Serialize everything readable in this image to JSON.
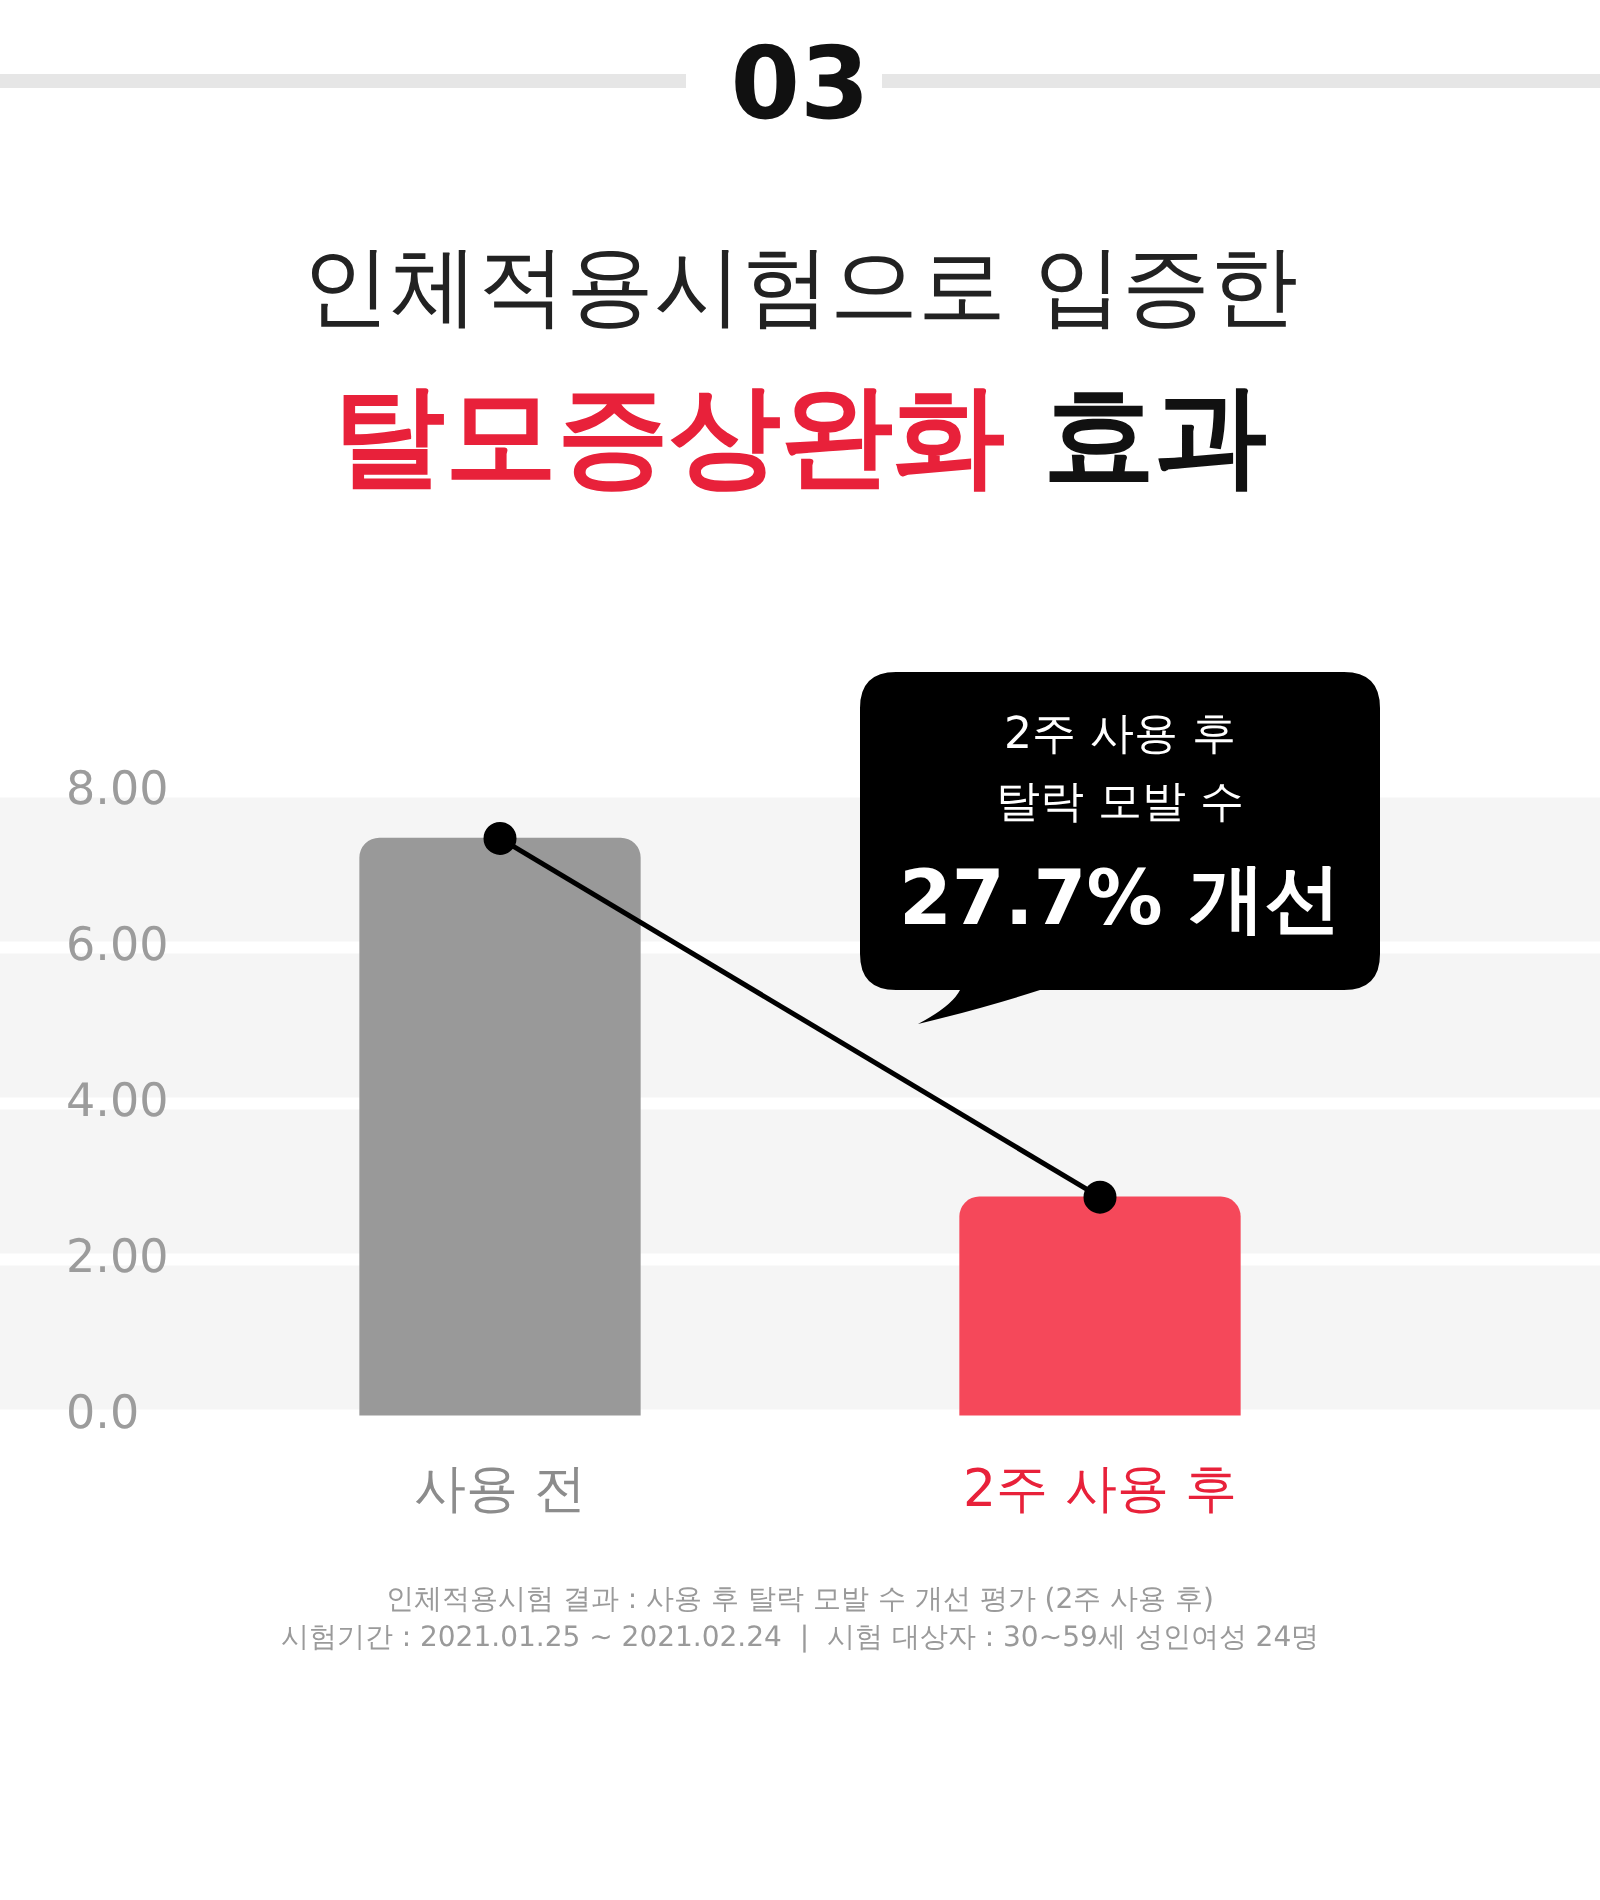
{
  "chart_data": {
    "type": "bar",
    "title": "인체적용시험으로 입증한",
    "subtitle": "탈모증상완화 효과",
    "categories": [
      "사용 전",
      "2주 사용 후"
    ],
    "series": [
      {
        "colors": [
          "#999999",
          "#f5485a"
        ],
        "values": [
          7.4,
          2.8
        ]
      },
      {
        "type": "line",
        "color": "#000000",
        "values": [
          7.4,
          2.8
        ]
      }
    ],
    "ylim": [
      0,
      8
    ],
    "yticks": [
      {
        "value": 0,
        "label": "0.0"
      },
      {
        "value": 2,
        "label": "2.00"
      },
      {
        "value": 4,
        "label": "4.00"
      },
      {
        "value": 6,
        "label": "6.00"
      },
      {
        "value": 8,
        "label": "8.00"
      }
    ],
    "grid": "y",
    "marker": "circle",
    "line_style": "solid",
    "annotations": [
      "03",
      "2주 사용 후\n탈락 모발 수\n27.7% 개선",
      "인체적용시험 결과 : 사용 후 탈락 모발 수 개선 평가 (2주 사용 후)",
      "시험기간 : 2021.01.25 ~ 2021.02.24  |  시험 대상자 : 30~59세 성인여성 24명"
    ]
  }
}
